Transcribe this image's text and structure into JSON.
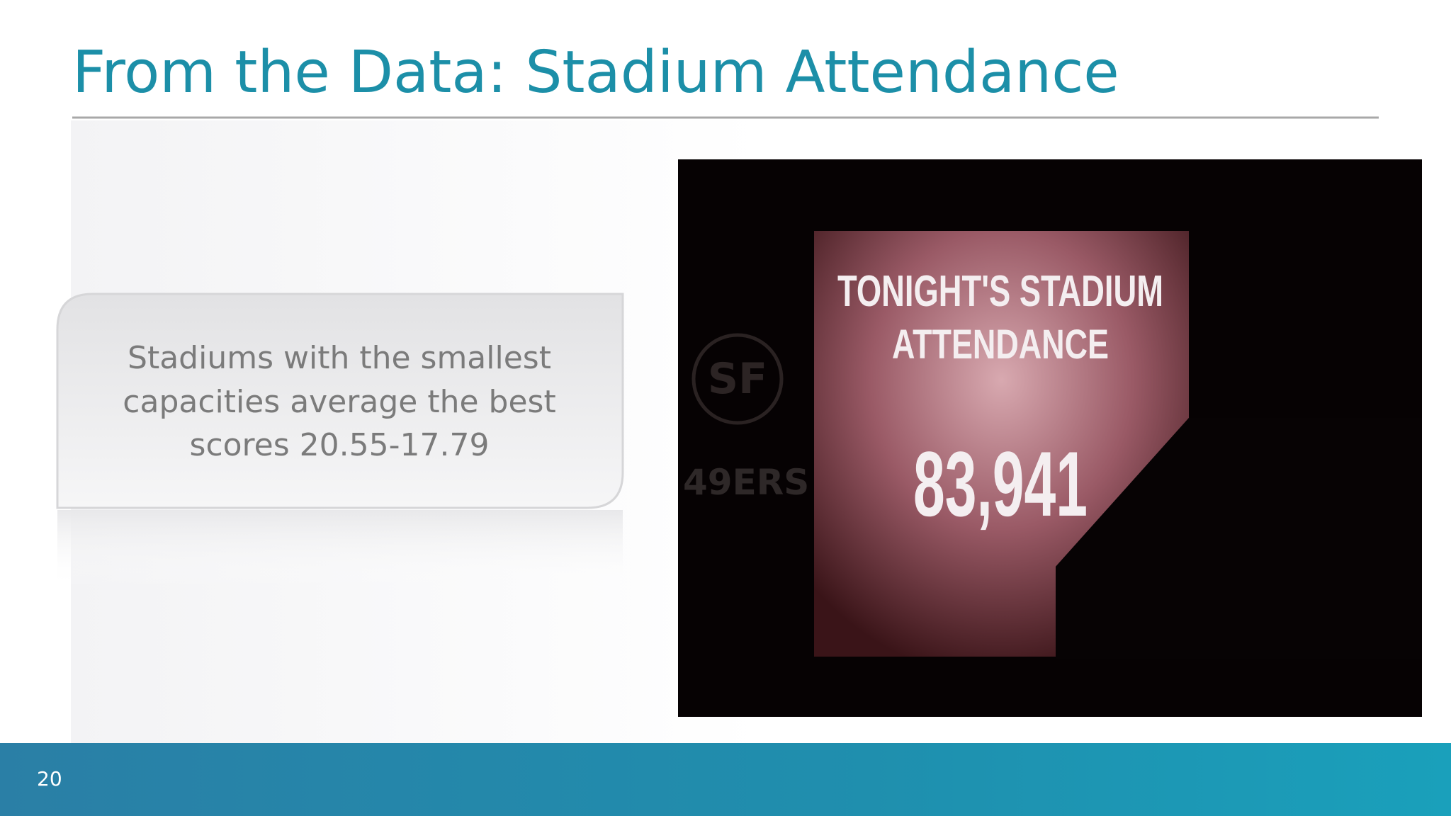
{
  "header": {
    "title": "From the Data: Stadium Attendance"
  },
  "callout": {
    "lines": [
      "Stadiums with the smallest",
      "capacities average the best",
      "scores 20.55-17.79"
    ]
  },
  "photo": {
    "screen_heading": [
      "TONIGHT'S STADIUM",
      "ATTENDANCE"
    ],
    "screen_number": "83,941",
    "team_logo": "SF",
    "team_name": "49ERS"
  },
  "footer": {
    "page_number": "20"
  }
}
